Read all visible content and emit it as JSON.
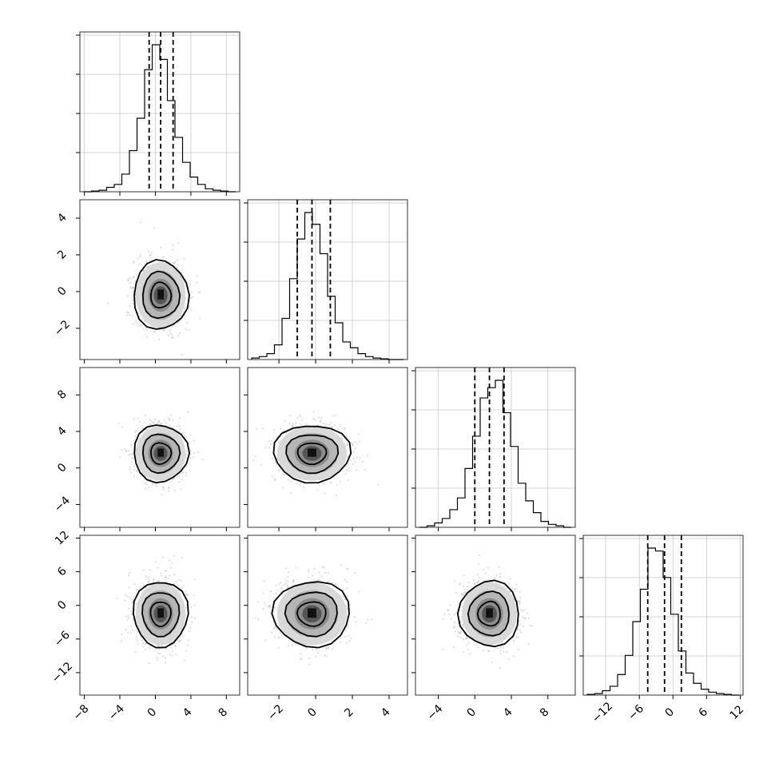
{
  "chart_data": {
    "type": "corner",
    "title": "",
    "grid": true,
    "parameters": [
      {
        "ticks": [
          -8,
          -4,
          0,
          4,
          8
        ],
        "tick_labels": [
          "−8",
          "−4",
          "0",
          "4",
          "8"
        ],
        "range": [
          -8.5,
          9.5
        ],
        "quantiles": [
          -0.7,
          0.6,
          2.0
        ],
        "hist_values": [
          0,
          0.005,
          0.01,
          0.03,
          0.05,
          0.12,
          0.28,
          0.5,
          0.83,
          1.0,
          0.9,
          0.62,
          0.37,
          0.2,
          0.1,
          0.05,
          0.02,
          0.01,
          0.005,
          0
        ]
      },
      {
        "ticks": [
          -2,
          0,
          2,
          4
        ],
        "tick_labels": [
          "−2",
          "0",
          "2",
          "4"
        ],
        "range": [
          -3.7,
          5.0
        ],
        "quantiles": [
          -1.0,
          -0.2,
          0.8
        ],
        "hist_values": [
          0.01,
          0.02,
          0.04,
          0.1,
          0.28,
          0.55,
          0.82,
          1.0,
          0.92,
          0.72,
          0.43,
          0.25,
          0.12,
          0.08,
          0.04,
          0.02,
          0.01,
          0.005,
          0,
          0
        ]
      },
      {
        "ticks": [
          -4,
          0,
          4,
          8
        ],
        "tick_labels": [
          "−4",
          "0",
          "4",
          "8"
        ],
        "range": [
          -6.5,
          11.0
        ],
        "quantiles": [
          0.0,
          1.6,
          3.2
        ],
        "hist_values": [
          0,
          0.01,
          0.03,
          0.06,
          0.12,
          0.2,
          0.4,
          0.62,
          0.88,
          0.95,
          1.0,
          0.78,
          0.55,
          0.3,
          0.18,
          0.1,
          0.04,
          0.02,
          0.01,
          0
        ]
      },
      {
        "ticks": [
          -12,
          -6,
          0,
          6,
          12
        ],
        "tick_labels": [
          "−12",
          "−6",
          "0",
          "6",
          "12"
        ],
        "range": [
          -16.0,
          12.5
        ],
        "quantiles": [
          -4.5,
          -1.5,
          1.5
        ],
        "hist_values": [
          0.005,
          0.01,
          0.03,
          0.06,
          0.14,
          0.27,
          0.5,
          0.72,
          1.0,
          0.98,
          0.8,
          0.55,
          0.3,
          0.15,
          0.08,
          0.04,
          0.02,
          0.01,
          0.005,
          0
        ]
      }
    ],
    "density_centers": [
      {
        "row": 1,
        "col": 0,
        "x": 0.6,
        "y": -0.2,
        "sx": 1.4,
        "sy": 0.9
      },
      {
        "row": 2,
        "col": 0,
        "x": 0.6,
        "y": 1.6,
        "sx": 1.4,
        "sy": 1.5
      },
      {
        "row": 2,
        "col": 1,
        "x": -0.2,
        "y": 1.6,
        "sx": 0.95,
        "sy": 1.5
      },
      {
        "row": 3,
        "col": 0,
        "x": 0.6,
        "y": -1.5,
        "sx": 1.4,
        "sy": 2.8
      },
      {
        "row": 3,
        "col": 1,
        "x": -0.2,
        "y": -1.5,
        "sx": 0.95,
        "sy": 2.8
      },
      {
        "row": 3,
        "col": 2,
        "x": 1.6,
        "y": -1.5,
        "sx": 1.5,
        "sy": 2.8
      }
    ]
  }
}
